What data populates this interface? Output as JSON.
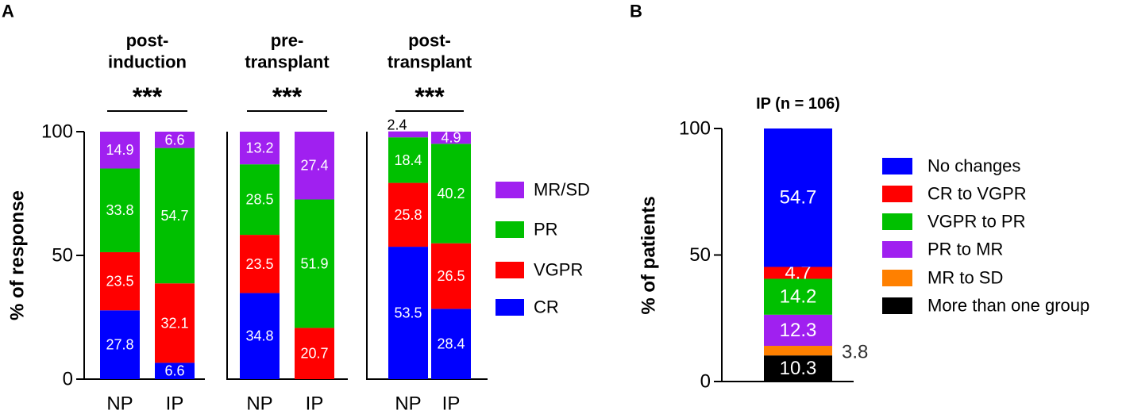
{
  "colors": {
    "CR": "#0000ff",
    "VGPR": "#ff0000",
    "PR": "#00c000",
    "MR_SD": "#a020f0",
    "no_changes": "#0000ff",
    "cr_to_vgpr": "#ff0000",
    "vgpr_to_pr": "#00c000",
    "pr_to_mr": "#a020f0",
    "mr_to_sd": "#ff8000",
    "more_than_one": "#000000",
    "axis": "#000000"
  },
  "chart_data": [
    {
      "panel": "A",
      "type": "bar",
      "stacked": true,
      "ylabel": "% of response",
      "ylim": [
        0,
        100
      ],
      "yticks": [
        0,
        50,
        100
      ],
      "legend": [
        {
          "name": "MR/SD",
          "color_key": "MR_SD"
        },
        {
          "name": "PR",
          "color_key": "PR"
        },
        {
          "name": "VGPR",
          "color_key": "VGPR"
        },
        {
          "name": "CR",
          "color_key": "CR"
        }
      ],
      "groups": [
        {
          "title": [
            "post-",
            "induction"
          ],
          "significance": "***",
          "bars": [
            {
              "label": "NP",
              "segments": [
                {
                  "series": "CR",
                  "value": 27.8,
                  "label": "27.8"
                },
                {
                  "series": "VGPR",
                  "value": 23.5,
                  "label": "23.5"
                },
                {
                  "series": "PR",
                  "value": 33.8,
                  "label": "33.8"
                },
                {
                  "series": "MR_SD",
                  "value": 14.9,
                  "label": "14.9"
                }
              ]
            },
            {
              "label": "IP",
              "segments": [
                {
                  "series": "CR",
                  "value": 6.6,
                  "label": "6.6"
                },
                {
                  "series": "VGPR",
                  "value": 32.1,
                  "label": "32.1"
                },
                {
                  "series": "PR",
                  "value": 54.7,
                  "label": "54.7"
                },
                {
                  "series": "MR_SD",
                  "value": 6.6,
                  "label": "6.6"
                }
              ]
            }
          ]
        },
        {
          "title": [
            "pre-",
            "transplant"
          ],
          "significance": "***",
          "bars": [
            {
              "label": "NP",
              "segments": [
                {
                  "series": "CR",
                  "value": 34.8,
                  "label": "34.8"
                },
                {
                  "series": "VGPR",
                  "value": 23.5,
                  "label": "23.5"
                },
                {
                  "series": "PR",
                  "value": 28.5,
                  "label": "28.5"
                },
                {
                  "series": "MR_SD",
                  "value": 13.2,
                  "label": "13.2"
                }
              ]
            },
            {
              "label": "IP",
              "segments": [
                {
                  "series": "VGPR",
                  "value": 20.7,
                  "label": "20.7"
                },
                {
                  "series": "PR",
                  "value": 51.9,
                  "label": "51.9"
                },
                {
                  "series": "MR_SD",
                  "value": 27.4,
                  "label": "27.4"
                }
              ]
            }
          ]
        },
        {
          "title": [
            "post-",
            "transplant"
          ],
          "significance": "***",
          "bars": [
            {
              "label": "NP",
              "segments": [
                {
                  "series": "CR",
                  "value": 53.5,
                  "label": "53.5"
                },
                {
                  "series": "VGPR",
                  "value": 25.8,
                  "label": "25.8"
                },
                {
                  "series": "PR",
                  "value": 18.4,
                  "label": "18.4"
                },
                {
                  "series": "MR_SD",
                  "value": 2.4,
                  "label": "2.4",
                  "label_outside": true
                }
              ]
            },
            {
              "label": "IP",
              "segments": [
                {
                  "series": "CR",
                  "value": 28.4,
                  "label": "28.4"
                },
                {
                  "series": "VGPR",
                  "value": 26.5,
                  "label": "26.5"
                },
                {
                  "series": "PR",
                  "value": 40.2,
                  "label": "40.2"
                },
                {
                  "series": "MR_SD",
                  "value": 4.9,
                  "label": "4.9"
                }
              ]
            }
          ]
        }
      ]
    },
    {
      "panel": "B",
      "type": "bar",
      "stacked": true,
      "title": "IP (n = 106)",
      "ylabel": "% of patients",
      "ylim": [
        0,
        100
      ],
      "yticks": [
        0,
        50,
        100
      ],
      "legend": [
        {
          "name": "No changes",
          "color_key": "no_changes"
        },
        {
          "name": "CR to VGPR",
          "color_key": "cr_to_vgpr"
        },
        {
          "name": "VGPR to PR",
          "color_key": "vgpr_to_pr"
        },
        {
          "name": "PR to MR",
          "color_key": "pr_to_mr"
        },
        {
          "name": "MR to SD",
          "color_key": "mr_to_sd"
        },
        {
          "name": "More than one group",
          "color_key": "more_than_one"
        }
      ],
      "segments": [
        {
          "series": "more_than_one",
          "value": 10.3,
          "label": "10.3"
        },
        {
          "series": "mr_to_sd",
          "value": 3.8,
          "label": "3.8",
          "label_outside": true
        },
        {
          "series": "pr_to_mr",
          "value": 12.3,
          "label": "12.3"
        },
        {
          "series": "vgpr_to_pr",
          "value": 14.2,
          "label": "14.2"
        },
        {
          "series": "cr_to_vgpr",
          "value": 4.7,
          "label": "4.7"
        },
        {
          "series": "no_changes",
          "value": 54.7,
          "label": "54.7"
        }
      ]
    }
  ]
}
